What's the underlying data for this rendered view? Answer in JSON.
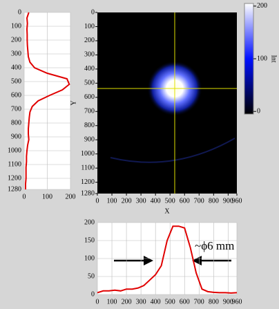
{
  "chart_data": [
    {
      "type": "line",
      "orientation": "vertical",
      "y": [
        0,
        40,
        80,
        120,
        160,
        200,
        240,
        280,
        320,
        360,
        400,
        440,
        480,
        520,
        560,
        600,
        640,
        680,
        720,
        760,
        800,
        840,
        880,
        920,
        960,
        1000,
        1040,
        1080,
        1120,
        1160,
        1200,
        1240,
        1280
      ],
      "values": [
        20,
        12,
        14,
        12,
        13,
        13,
        14,
        16,
        18,
        25,
        45,
        100,
        185,
        195,
        165,
        110,
        60,
        35,
        25,
        22,
        20,
        18,
        18,
        20,
        15,
        12,
        10,
        10,
        8,
        8,
        8,
        6,
        6
      ],
      "color": "#e00000",
      "xlim": [
        0,
        200
      ],
      "xticks": [
        0,
        100,
        200
      ],
      "ylim": [
        0,
        1280
      ],
      "yticks": [
        0,
        100,
        200,
        300,
        400,
        500,
        600,
        700,
        800,
        900,
        1000,
        1100,
        1200,
        1280
      ],
      "grid": true
    },
    {
      "type": "image",
      "xlabel": "X",
      "ylabel": "Y",
      "xlim": [
        0,
        960
      ],
      "xticks": [
        0,
        100,
        200,
        300,
        400,
        500,
        600,
        700,
        800,
        900,
        960
      ],
      "ylim": [
        0,
        1280
      ],
      "yticks": [
        0,
        100,
        200,
        300,
        400,
        500,
        600,
        700,
        800,
        900,
        1000,
        1100,
        1200,
        1280
      ]
    },
    {
      "type": "colorbar",
      "label": "Int",
      "ylim": [
        -5,
        205
      ],
      "yticks": [
        0,
        100,
        200
      ],
      "colors": [
        "#000000",
        "#0010ff",
        "#ffffff"
      ]
    },
    {
      "type": "line",
      "x": [
        0,
        40,
        80,
        120,
        160,
        200,
        240,
        280,
        320,
        360,
        400,
        440,
        480,
        520,
        560,
        600,
        640,
        680,
        720,
        760,
        800,
        840,
        880,
        920,
        960
      ],
      "values": [
        5,
        10,
        10,
        12,
        10,
        15,
        15,
        18,
        25,
        40,
        55,
        80,
        150,
        190,
        190,
        185,
        130,
        60,
        15,
        8,
        6,
        5,
        5,
        4,
        5
      ],
      "color": "#e00000",
      "xlim": [
        0,
        960
      ],
      "xticks": [
        0,
        100,
        200,
        300,
        400,
        500,
        600,
        700,
        800,
        900,
        960
      ],
      "ylim": [
        0,
        200
      ],
      "yticks": [
        0,
        50,
        100,
        150,
        200
      ],
      "grid": true,
      "annotation": "~ϕ6 mm"
    }
  ]
}
